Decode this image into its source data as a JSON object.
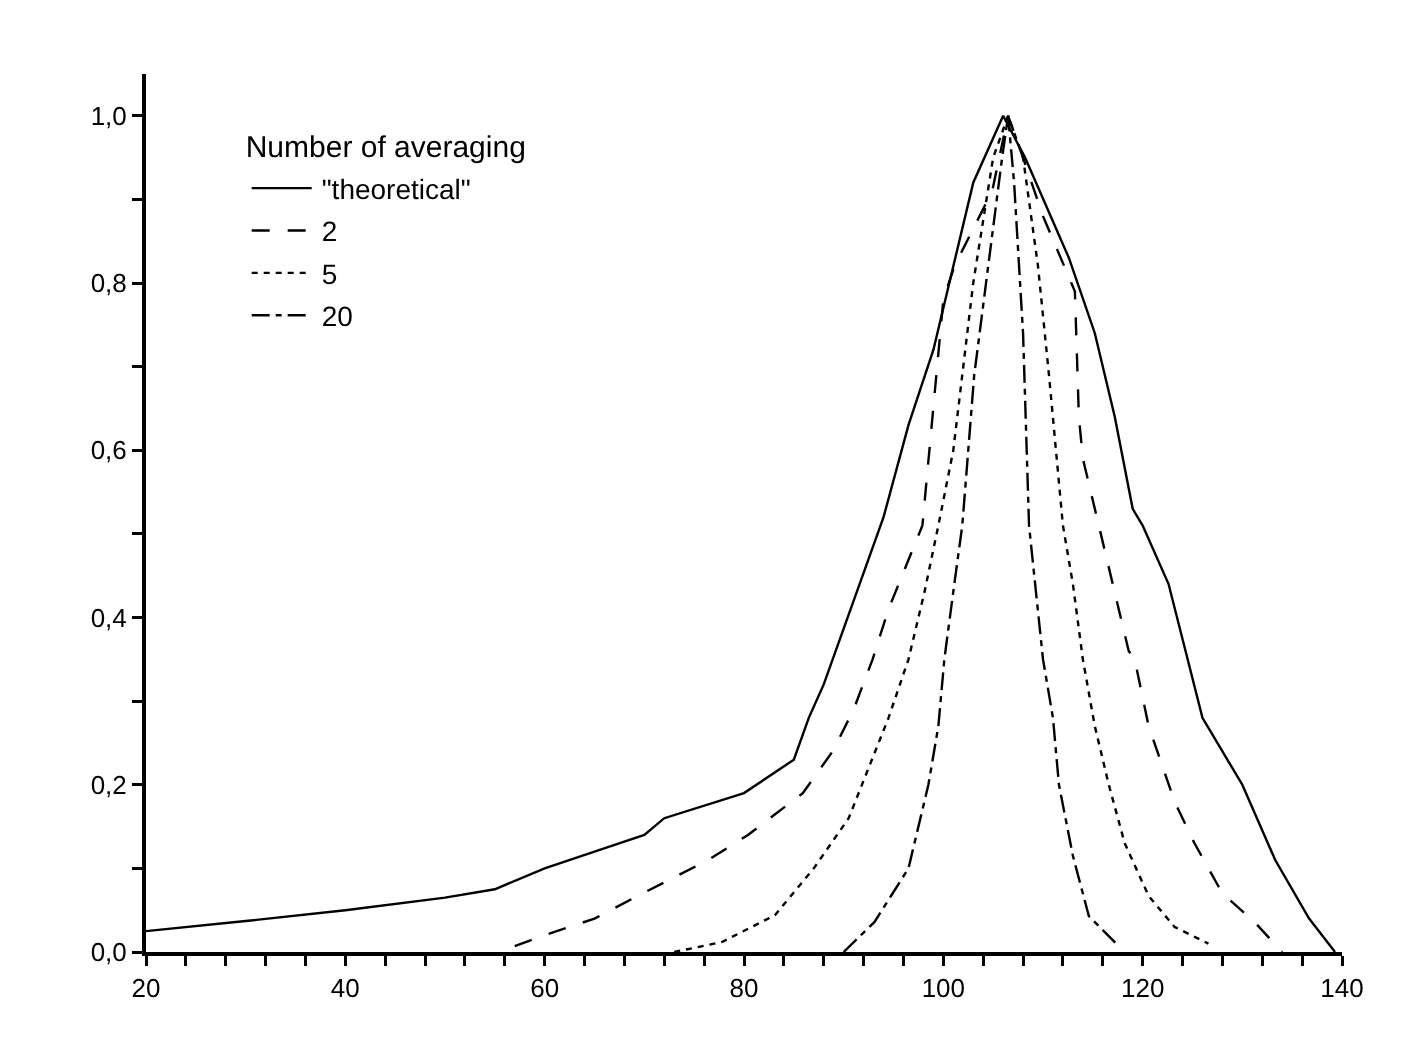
{
  "chart_data": {
    "type": "line",
    "legend_title": "Number of averaging",
    "legend": "top left",
    "grid": false,
    "marker": "none",
    "xlim": [
      20,
      140
    ],
    "ylim": [
      0,
      1.05
    ],
    "xticks": [
      20,
      {
        "value": 24,
        "label": null
      },
      {
        "value": 28,
        "label": null
      },
      {
        "value": 32,
        "label": null
      },
      {
        "value": 36,
        "label": null
      },
      40,
      {
        "value": 44,
        "label": null
      },
      {
        "value": 48,
        "label": null
      },
      {
        "value": 52,
        "label": null
      },
      {
        "value": 56,
        "label": null
      },
      60,
      {
        "value": 64,
        "label": null
      },
      {
        "value": 68,
        "label": null
      },
      {
        "value": 72,
        "label": null
      },
      {
        "value": 76,
        "label": null
      },
      80,
      {
        "value": 84,
        "label": null
      },
      {
        "value": 88,
        "label": null
      },
      {
        "value": 92,
        "label": null
      },
      {
        "value": 96,
        "label": null
      },
      100,
      {
        "value": 104,
        "label": null
      },
      {
        "value": 108,
        "label": null
      },
      {
        "value": 112,
        "label": null
      },
      {
        "value": 116,
        "label": null
      },
      120,
      {
        "value": 124,
        "label": null
      },
      {
        "value": 128,
        "label": null
      },
      {
        "value": 132,
        "label": null
      },
      {
        "value": 136,
        "label": null
      },
      140
    ],
    "yticks": [
      {
        "value": 0,
        "label": "0,0"
      },
      {
        "value": 0.1,
        "label": null
      },
      {
        "value": 0.2,
        "label": "0,2"
      },
      {
        "value": 0.3,
        "label": null
      },
      {
        "value": 0.4,
        "label": "0,4"
      },
      {
        "value": 0.5,
        "label": null
      },
      {
        "value": 0.6,
        "label": "0,6"
      },
      {
        "value": 0.7,
        "label": null
      },
      {
        "value": 0.8,
        "label": "0,8"
      },
      {
        "value": 0.9,
        "label": null
      },
      {
        "value": 1.0,
        "label": "1,0"
      }
    ],
    "series": [
      {
        "name": "\"theoretical\"",
        "color": "#000000",
        "line_style": "solid",
        "x": [
          20,
          30,
          40,
          50,
          55,
          60,
          65,
          70,
          72,
          80,
          85,
          86.5,
          88,
          94,
          96.5,
          99,
          101,
          103,
          106,
          108.2,
          112.6,
          115.2,
          117.2,
          119,
          120,
          122.6,
          126,
          130,
          133.3,
          136.7,
          139.3
        ],
        "values": [
          0.025,
          0.037,
          0.05,
          0.065,
          0.075,
          0.1,
          0.12,
          0.14,
          0.16,
          0.19,
          0.23,
          0.28,
          0.32,
          0.52,
          0.63,
          0.72,
          0.82,
          0.92,
          1.0,
          0.95,
          0.83,
          0.74,
          0.64,
          0.53,
          0.51,
          0.44,
          0.28,
          0.2,
          0.11,
          0.04,
          0.0
        ]
      },
      {
        "name": "2",
        "color": "#000000",
        "line_style": "dashed",
        "x": [
          57,
          60,
          65,
          69,
          76.4,
          80.4,
          85.9,
          88.9,
          91,
          92.9,
          94.5,
          97.9,
          100,
          101.1,
          104.9,
          106.5,
          108,
          110,
          113.2,
          113.6,
          114,
          115.6,
          117,
          118.6,
          119.2,
          120.6,
          123.2,
          125.2,
          128,
          131.2,
          134
        ],
        "values": [
          0.007,
          0.02,
          0.04,
          0.065,
          0.11,
          0.14,
          0.19,
          0.24,
          0.29,
          0.35,
          0.41,
          0.51,
          0.78,
          0.82,
          0.91,
          1.0,
          0.95,
          0.88,
          0.79,
          0.64,
          0.59,
          0.51,
          0.44,
          0.36,
          0.35,
          0.27,
          0.18,
          0.13,
          0.07,
          0.036,
          0.0
        ]
      },
      {
        "name": "5",
        "color": "#000000",
        "line_style": "dotted",
        "x": [
          73,
          77.8,
          83.1,
          87,
          90.5,
          92.5,
          94.5,
          96.5,
          98.1,
          99.5,
          101,
          103,
          105,
          106.5,
          108,
          109.5,
          110.6,
          112,
          113,
          114,
          115.2,
          116.6,
          118.2,
          120.6,
          123.2,
          126.6
        ],
        "values": [
          0.0,
          0.012,
          0.044,
          0.1,
          0.16,
          0.22,
          0.28,
          0.35,
          0.43,
          0.51,
          0.6,
          0.8,
          0.95,
          1.0,
          0.95,
          0.82,
          0.69,
          0.51,
          0.44,
          0.35,
          0.27,
          0.2,
          0.13,
          0.067,
          0.03,
          0.01
        ]
      },
      {
        "name": "20",
        "color": "#000000",
        "line_style": "dashdot",
        "x": [
          90,
          93.1,
          96.5,
          98.5,
          99.5,
          100.1,
          101.1,
          101.9,
          103.1,
          104.5,
          105.9,
          106.5,
          107.1,
          108,
          108.6,
          110,
          111,
          111.6,
          113,
          114.6,
          117.6
        ],
        "values": [
          0.0,
          0.036,
          0.1,
          0.2,
          0.27,
          0.35,
          0.44,
          0.51,
          0.69,
          0.82,
          0.95,
          1.0,
          0.92,
          0.74,
          0.51,
          0.35,
          0.28,
          0.2,
          0.115,
          0.043,
          0.007
        ]
      }
    ]
  }
}
